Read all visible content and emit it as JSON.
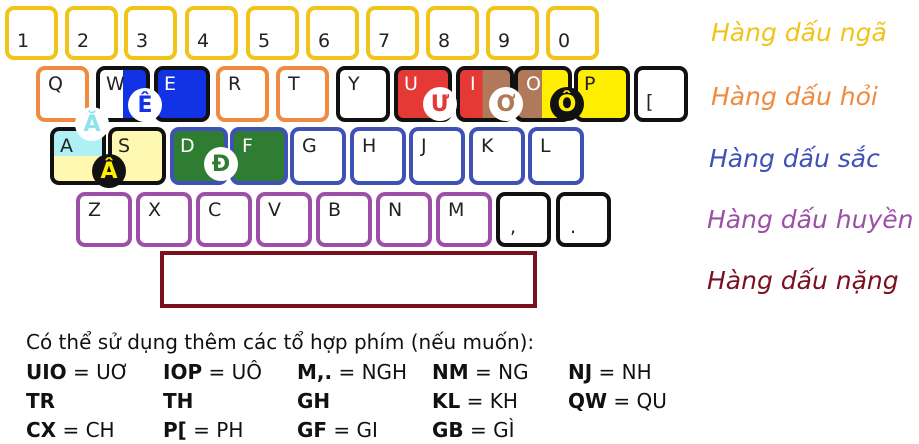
{
  "keys_row1": [
    "1",
    "2",
    "3",
    "4",
    "5",
    "6",
    "7",
    "8",
    "9",
    "0"
  ],
  "keys_row2": [
    "Q",
    "W",
    "E",
    "R",
    "T",
    "Y",
    "U",
    "I",
    "O",
    "P",
    "["
  ],
  "keys_row3": [
    "A",
    "S",
    "D",
    "F",
    "G",
    "H",
    "J",
    "K",
    "L"
  ],
  "keys_row4": [
    "Z",
    "X",
    "C",
    "V",
    "B",
    "N",
    "M",
    ",",
    "."
  ],
  "badges": {
    "a_breve": "Ă",
    "e_circ": "Ê",
    "a_circ": "Â",
    "d_stroke": "Đ",
    "u_horn": "Ư",
    "o_horn": "Ơ",
    "o_circ": "Ô"
  },
  "row_labels": {
    "nga": "Hàng dấu ngã",
    "hoi": "Hàng dấu hỏi",
    "sac": "Hàng dấu sắc",
    "huyen": "Hàng dấu huyền",
    "nang": "Hàng dấu nặng"
  },
  "colors": {
    "nga": "#f0c419",
    "hoi": "#ef8a3e",
    "sac": "#3f51b5",
    "huyen": "#9c4fa6",
    "nang": "#7a1020",
    "blue_fill": "#1232e6",
    "green_fill": "#2e7d32",
    "red_fill": "#e53935",
    "brown_fill": "#b07a5a",
    "yellow_fill": "#ffee00",
    "cream_fill": "#fff8b0",
    "cyan_fill": "#aef0f4"
  },
  "legend": {
    "intro": "Có thể sử dụng thêm các tổ hợp phím (nếu muốn):",
    "combos": [
      {
        "key": "UIO",
        "value": " = UƠ"
      },
      {
        "key": "IOP",
        "value": " = UÔ"
      },
      {
        "key": "M,.",
        "value": " = NGH"
      },
      {
        "key": "NM",
        "value": " = NG"
      },
      {
        "key": "NJ",
        "value": " = NH"
      },
      {
        "key": "TR",
        "value": ""
      },
      {
        "key": "TH",
        "value": ""
      },
      {
        "key": "GH",
        "value": ""
      },
      {
        "key": "KL",
        "value": " = KH"
      },
      {
        "key": "QW",
        "value": " = QU"
      },
      {
        "key": "CX",
        "value": " = CH"
      },
      {
        "key": "P[",
        "value": " = PH"
      },
      {
        "key": "GF",
        "value": " = GI"
      },
      {
        "key": "GB",
        "value": " = GÌ"
      }
    ]
  }
}
